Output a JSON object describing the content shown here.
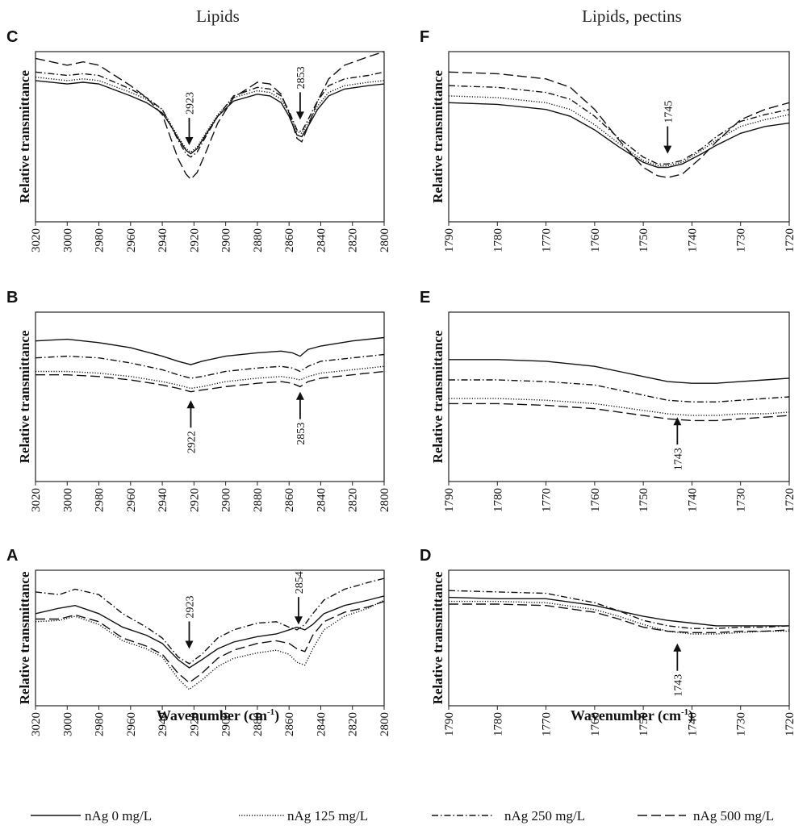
{
  "column_titles": [
    "Lipids",
    "Lipids, pectins"
  ],
  "x_axis_label": "Wavenumber (cm",
  "x_axis_label_sup": "-1",
  "x_axis_label_close": ")",
  "legend": [
    {
      "name": "nAg 0 mg/L",
      "style": "solid"
    },
    {
      "name": "nAg 125 mg/L",
      "style": "dotted"
    },
    {
      "name": "nAg 250 mg/L",
      "style": "dashdot"
    },
    {
      "name": "nAg 500 mg/L",
      "style": "dashed"
    }
  ],
  "chart_data": [
    {
      "panel": "C",
      "type": "line",
      "column": 0,
      "row": 0,
      "ylabel": "Relative transmittance",
      "xlim": [
        3020,
        2800
      ],
      "ylim": [
        0,
        100
      ],
      "xticks": [
        3020,
        3000,
        2980,
        2960,
        2940,
        2920,
        2900,
        2880,
        2860,
        2840,
        2820,
        2800
      ],
      "annotations": [
        {
          "label": "2923",
          "x": 2923,
          "y": 45,
          "direction": "down"
        },
        {
          "label": "2853",
          "x": 2853,
          "y": 60,
          "direction": "down"
        }
      ],
      "x": [
        3020,
        3000,
        2990,
        2980,
        2960,
        2950,
        2940,
        2935,
        2930,
        2925,
        2922,
        2918,
        2912,
        2905,
        2895,
        2880,
        2872,
        2865,
        2860,
        2855,
        2852,
        2848,
        2842,
        2835,
        2825,
        2810,
        2800
      ],
      "series": [
        {
          "name": "nAg 0 mg/L",
          "values": [
            83,
            81,
            82,
            81,
            74,
            70,
            64,
            57,
            49,
            42,
            40,
            43,
            52,
            62,
            71,
            75,
            74,
            70,
            62,
            51,
            50,
            56,
            66,
            74,
            78,
            80,
            81
          ]
        },
        {
          "name": "nAg 125 mg/L",
          "values": [
            85,
            83,
            84,
            83,
            76,
            72,
            66,
            58,
            50,
            43,
            41,
            44,
            53,
            63,
            73,
            77,
            76,
            72,
            64,
            53,
            52,
            58,
            68,
            76,
            80,
            82,
            83
          ]
        },
        {
          "name": "nAg 250 mg/L",
          "values": [
            88,
            86,
            87,
            86,
            78,
            73,
            66,
            57,
            48,
            40,
            38,
            41,
            51,
            62,
            74,
            79,
            78,
            74,
            65,
            54,
            53,
            60,
            71,
            80,
            84,
            86,
            88
          ]
        },
        {
          "name": "nAg 500 mg/L",
          "values": [
            96,
            92,
            94,
            92,
            80,
            73,
            63,
            50,
            37,
            28,
            25,
            29,
            42,
            58,
            73,
            82,
            81,
            75,
            64,
            49,
            47,
            56,
            71,
            84,
            92,
            97,
            100
          ]
        }
      ]
    },
    {
      "panel": "B",
      "type": "line",
      "column": 0,
      "row": 1,
      "ylabel": "Relative transmittance",
      "xlim": [
        3020,
        2800
      ],
      "ylim": [
        0,
        100
      ],
      "xticks": [
        3020,
        3000,
        2980,
        2960,
        2940,
        2920,
        2900,
        2880,
        2860,
        2840,
        2820,
        2800
      ],
      "annotations": [
        {
          "label": "2922",
          "x": 2922,
          "y": 48,
          "direction": "up"
        },
        {
          "label": "2853",
          "x": 2853,
          "y": 53,
          "direction": "up"
        }
      ],
      "x": [
        3020,
        3000,
        2980,
        2960,
        2940,
        2930,
        2922,
        2915,
        2900,
        2880,
        2865,
        2858,
        2853,
        2848,
        2840,
        2820,
        2800
      ],
      "series": [
        {
          "name": "nAg 0 mg/L",
          "values": [
            83,
            84,
            82,
            79,
            74,
            71,
            69,
            71,
            74,
            76,
            77,
            76,
            74,
            78,
            80,
            83,
            85
          ]
        },
        {
          "name": "nAg 125 mg/L",
          "values": [
            65,
            65,
            64,
            62,
            59,
            57,
            55,
            56,
            59,
            61,
            62,
            61,
            60,
            62,
            64,
            66,
            68
          ]
        },
        {
          "name": "nAg 250 mg/L",
          "values": [
            73,
            74,
            73,
            70,
            66,
            63,
            61,
            62,
            65,
            67,
            68,
            67,
            65,
            68,
            71,
            73,
            75
          ]
        },
        {
          "name": "nAg 500 mg/L",
          "values": [
            63,
            63,
            62,
            60,
            57,
            55,
            53,
            54,
            56,
            58,
            59,
            58,
            56,
            59,
            61,
            63,
            65
          ]
        }
      ]
    },
    {
      "panel": "A",
      "type": "line",
      "column": 0,
      "row": 2,
      "ylabel": "Relative transmittance",
      "xlim": [
        3020,
        2800
      ],
      "ylim": [
        0,
        100
      ],
      "xticks": [
        3020,
        3000,
        2980,
        2960,
        2940,
        2920,
        2900,
        2880,
        2860,
        2840,
        2820,
        2800
      ],
      "annotations": [
        {
          "label": "2923",
          "x": 2923,
          "y": 42,
          "direction": "down"
        },
        {
          "label": "2854",
          "x": 2854,
          "y": 60,
          "direction": "down"
        }
      ],
      "x": [
        3020,
        3005,
        2995,
        2980,
        2965,
        2950,
        2940,
        2930,
        2923,
        2915,
        2905,
        2895,
        2880,
        2868,
        2860,
        2855,
        2850,
        2845,
        2838,
        2825,
        2810,
        2800
      ],
      "series": [
        {
          "name": "nAg 0 mg/L",
          "values": [
            68,
            72,
            74,
            68,
            58,
            52,
            46,
            34,
            28,
            34,
            42,
            47,
            51,
            53,
            56,
            58,
            56,
            60,
            68,
            74,
            78,
            81
          ]
        },
        {
          "name": "nAg 125 mg/L",
          "values": [
            62,
            63,
            66,
            60,
            48,
            42,
            36,
            20,
            12,
            19,
            29,
            35,
            39,
            41,
            38,
            32,
            30,
            42,
            56,
            66,
            72,
            78
          ]
        },
        {
          "name": "nAg 250 mg/L",
          "values": [
            84,
            82,
            86,
            82,
            68,
            58,
            50,
            36,
            31,
            38,
            50,
            56,
            61,
            62,
            58,
            56,
            60,
            68,
            78,
            86,
            91,
            94
          ]
        },
        {
          "name": "nAg 500 mg/L",
          "values": [
            64,
            64,
            67,
            62,
            50,
            44,
            38,
            24,
            17,
            24,
            35,
            41,
            46,
            48,
            46,
            42,
            40,
            52,
            62,
            69,
            73,
            77
          ]
        }
      ]
    },
    {
      "panel": "F",
      "type": "line",
      "column": 1,
      "row": 0,
      "ylabel": "Relative transmittance",
      "xlim": [
        1790,
        1720
      ],
      "ylim": [
        0,
        100
      ],
      "xticks": [
        1790,
        1780,
        1770,
        1760,
        1750,
        1740,
        1730,
        1720
      ],
      "annotations": [
        {
          "label": "1745",
          "x": 1745,
          "y": 40,
          "direction": "down"
        }
      ],
      "x": [
        1790,
        1780,
        1770,
        1765,
        1760,
        1755,
        1750,
        1747,
        1745,
        1742,
        1738,
        1735,
        1730,
        1725,
        1720
      ],
      "series": [
        {
          "name": "nAg 0 mg/L",
          "values": [
            70,
            69,
            66,
            62,
            54,
            44,
            35,
            32,
            32,
            34,
            40,
            45,
            52,
            56,
            58
          ]
        },
        {
          "name": "nAg 125 mg/L",
          "values": [
            74,
            73,
            70,
            66,
            57,
            46,
            36,
            33,
            33,
            35,
            42,
            48,
            56,
            60,
            63
          ]
        },
        {
          "name": "nAg 250 mg/L",
          "values": [
            80,
            79,
            76,
            72,
            62,
            49,
            38,
            34,
            34,
            36,
            43,
            50,
            59,
            63,
            66
          ]
        },
        {
          "name": "nAg 500 mg/L",
          "values": [
            88,
            87,
            84,
            79,
            66,
            48,
            32,
            27,
            26,
            28,
            38,
            47,
            60,
            66,
            70
          ]
        }
      ]
    },
    {
      "panel": "E",
      "type": "line",
      "column": 1,
      "row": 1,
      "ylabel": "Relative transmittance",
      "xlim": [
        1790,
        1720
      ],
      "ylim": [
        0,
        100
      ],
      "xticks": [
        1790,
        1780,
        1770,
        1760,
        1750,
        1740,
        1730,
        1720
      ],
      "annotations": [
        {
          "label": "1743",
          "x": 1743,
          "y": 38,
          "direction": "up"
        }
      ],
      "x": [
        1790,
        1780,
        1770,
        1760,
        1755,
        1750,
        1745,
        1740,
        1735,
        1730,
        1725,
        1720
      ],
      "series": [
        {
          "name": "nAg 0 mg/L",
          "values": [
            72,
            72,
            71,
            68,
            65,
            62,
            59,
            58,
            58,
            59,
            60,
            61
          ]
        },
        {
          "name": "nAg 125 mg/L",
          "values": [
            49,
            49,
            48,
            46,
            44,
            42,
            40,
            39,
            39,
            40,
            40,
            41
          ]
        },
        {
          "name": "nAg 250 mg/L",
          "values": [
            60,
            60,
            59,
            57,
            54,
            51,
            48,
            47,
            47,
            48,
            49,
            50
          ]
        },
        {
          "name": "nAg 500 mg/L",
          "values": [
            46,
            46,
            45,
            43,
            41,
            39,
            37,
            36,
            36,
            37,
            38,
            39
          ]
        }
      ]
    },
    {
      "panel": "D",
      "type": "line",
      "column": 1,
      "row": 2,
      "ylabel": "Relative transmittance",
      "xlim": [
        1790,
        1720
      ],
      "ylim": [
        0,
        100
      ],
      "xticks": [
        1790,
        1780,
        1770,
        1760,
        1750,
        1740,
        1730,
        1720
      ],
      "annotations": [
        {
          "label": "1743",
          "x": 1743,
          "y": 46,
          "direction": "up"
        }
      ],
      "x": [
        1790,
        1780,
        1770,
        1760,
        1755,
        1750,
        1745,
        1740,
        1735,
        1730,
        1725,
        1720
      ],
      "series": [
        {
          "name": "nAg 0 mg/L",
          "values": [
            80,
            79,
            79,
            74,
            70,
            66,
            63,
            61,
            59,
            59,
            59,
            59
          ]
        },
        {
          "name": "nAg 125 mg/L",
          "values": [
            77,
            77,
            76,
            71,
            66,
            60,
            55,
            53,
            53,
            54,
            55,
            55
          ]
        },
        {
          "name": "nAg 250 mg/L",
          "values": [
            85,
            84,
            83,
            76,
            70,
            63,
            59,
            57,
            57,
            58,
            58,
            59
          ]
        },
        {
          "name": "nAg 500 mg/L",
          "values": [
            75,
            75,
            74,
            69,
            64,
            58,
            55,
            54,
            54,
            55,
            55,
            56
          ]
        }
      ]
    }
  ]
}
